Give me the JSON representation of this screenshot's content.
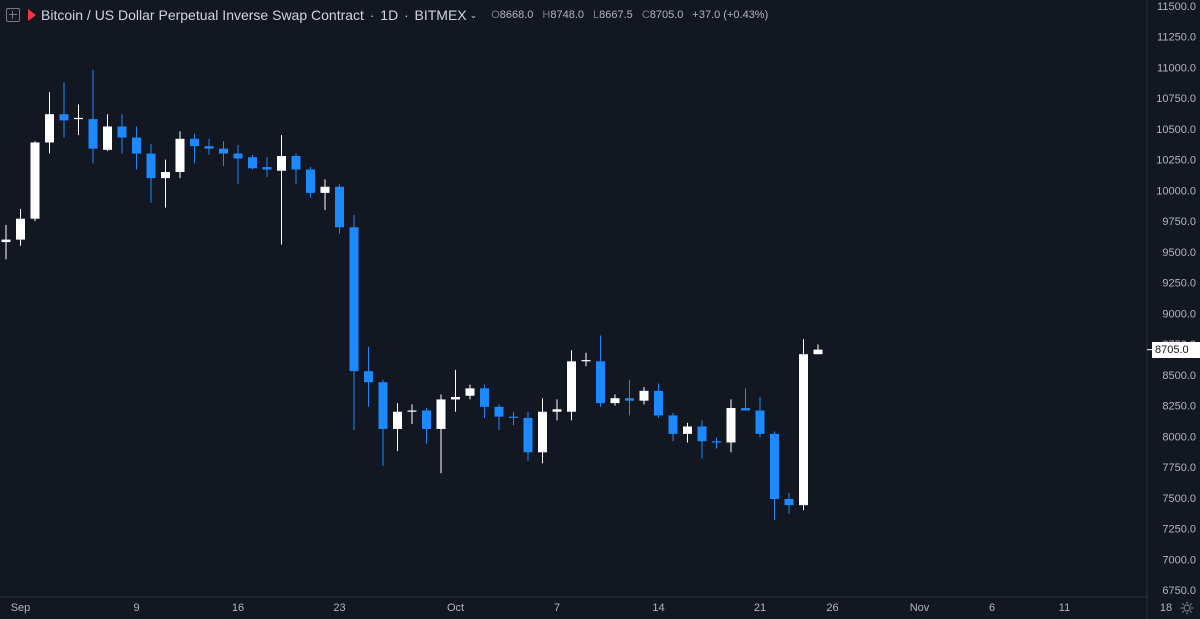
{
  "header": {
    "symbol": "Bitcoin / US Dollar Perpetual Inverse Swap Contract",
    "interval": "1D",
    "exchange": "BITMEX",
    "open_label": "O",
    "open": "8668.0",
    "high_label": "H",
    "high": "8748.0",
    "low_label": "L",
    "low": "8667.5",
    "close_label": "C",
    "close": "8705.0",
    "change": "+37.0 (+0.43%)"
  },
  "last_price_label": "8705.0",
  "colors": {
    "background": "#131722",
    "up": "#ffffff",
    "down": "#1e88ff",
    "axis_text": "#b2b5be",
    "flag": "#f23645"
  },
  "chart_data": {
    "type": "candlestick",
    "x_tick_labels": [
      "Sep",
      "9",
      "16",
      "23",
      "Oct",
      "7",
      "14",
      "21",
      "26",
      "Nov",
      "6",
      "11",
      "18"
    ],
    "y_tick_labels": [
      "6750.0",
      "7000.0",
      "7250.0",
      "7500.0",
      "7750.0",
      "8000.0",
      "8250.0",
      "8500.0",
      "8750.0",
      "9000.0",
      "9250.0",
      "9500.0",
      "9750.0",
      "10000.0",
      "10250.0",
      "10500.0",
      "10750.0",
      "11000.0",
      "11250.0",
      "11500.0"
    ],
    "ylim": [
      6700,
      11580
    ],
    "last_price": 8705.0,
    "candles": [
      {
        "date": "Aug 31",
        "o": 9580,
        "h": 9720,
        "l": 9440,
        "c": 9600
      },
      {
        "date": "Sep 1",
        "o": 9600,
        "h": 9850,
        "l": 9550,
        "c": 9770
      },
      {
        "date": "Sep 2",
        "o": 9770,
        "h": 10400,
        "l": 9750,
        "c": 10390
      },
      {
        "date": "Sep 3",
        "o": 10390,
        "h": 10800,
        "l": 10300,
        "c": 10620
      },
      {
        "date": "Sep 4",
        "o": 10620,
        "h": 10880,
        "l": 10430,
        "c": 10570
      },
      {
        "date": "Sep 5",
        "o": 10580,
        "h": 10700,
        "l": 10450,
        "c": 10590
      },
      {
        "date": "Sep 6",
        "o": 10580,
        "h": 10980,
        "l": 10220,
        "c": 10340
      },
      {
        "date": "Sep 7",
        "o": 10330,
        "h": 10620,
        "l": 10320,
        "c": 10520
      },
      {
        "date": "Sep 8",
        "o": 10520,
        "h": 10620,
        "l": 10300,
        "c": 10430
      },
      {
        "date": "Sep 9",
        "o": 10430,
        "h": 10520,
        "l": 10170,
        "c": 10300
      },
      {
        "date": "Sep 10",
        "o": 10300,
        "h": 10380,
        "l": 9900,
        "c": 10100
      },
      {
        "date": "Sep 11",
        "o": 10100,
        "h": 10250,
        "l": 9860,
        "c": 10150
      },
      {
        "date": "Sep 12",
        "o": 10150,
        "h": 10480,
        "l": 10100,
        "c": 10420
      },
      {
        "date": "Sep 13",
        "o": 10420,
        "h": 10460,
        "l": 10220,
        "c": 10360
      },
      {
        "date": "Sep 14",
        "o": 10360,
        "h": 10420,
        "l": 10290,
        "c": 10340
      },
      {
        "date": "Sep 15",
        "o": 10340,
        "h": 10400,
        "l": 10200,
        "c": 10300
      },
      {
        "date": "Sep 16",
        "o": 10300,
        "h": 10370,
        "l": 10050,
        "c": 10260
      },
      {
        "date": "Sep 17",
        "o": 10270,
        "h": 10290,
        "l": 10170,
        "c": 10180
      },
      {
        "date": "Sep 18",
        "o": 10190,
        "h": 10270,
        "l": 10110,
        "c": 10170
      },
      {
        "date": "Sep 19",
        "o": 10160,
        "h": 10450,
        "l": 9560,
        "c": 10280
      },
      {
        "date": "Sep 20",
        "o": 10280,
        "h": 10300,
        "l": 10050,
        "c": 10170
      },
      {
        "date": "Sep 21",
        "o": 10170,
        "h": 10190,
        "l": 9940,
        "c": 9980
      },
      {
        "date": "Sep 22",
        "o": 9980,
        "h": 10090,
        "l": 9840,
        "c": 10030
      },
      {
        "date": "Sep 23",
        "o": 10030,
        "h": 10050,
        "l": 9650,
        "c": 9700
      },
      {
        "date": "Sep 24",
        "o": 9700,
        "h": 9800,
        "l": 8050,
        "c": 8530
      },
      {
        "date": "Sep 25",
        "o": 8530,
        "h": 8730,
        "l": 8240,
        "c": 8440
      },
      {
        "date": "Sep 26",
        "o": 8440,
        "h": 8460,
        "l": 7760,
        "c": 8060
      },
      {
        "date": "Sep 27",
        "o": 8060,
        "h": 8270,
        "l": 7880,
        "c": 8200
      },
      {
        "date": "Sep 28",
        "o": 8200,
        "h": 8260,
        "l": 8100,
        "c": 8210
      },
      {
        "date": "Sep 29",
        "o": 8210,
        "h": 8230,
        "l": 7940,
        "c": 8060
      },
      {
        "date": "Sep 30",
        "o": 8060,
        "h": 8340,
        "l": 7700,
        "c": 8300
      },
      {
        "date": "Oct 1",
        "o": 8300,
        "h": 8540,
        "l": 8200,
        "c": 8320
      },
      {
        "date": "Oct 2",
        "o": 8330,
        "h": 8420,
        "l": 8300,
        "c": 8390
      },
      {
        "date": "Oct 3",
        "o": 8390,
        "h": 8420,
        "l": 8150,
        "c": 8240
      },
      {
        "date": "Oct 4",
        "o": 8240,
        "h": 8260,
        "l": 8050,
        "c": 8160
      },
      {
        "date": "Oct 5",
        "o": 8160,
        "h": 8200,
        "l": 8090,
        "c": 8150
      },
      {
        "date": "Oct 6",
        "o": 8150,
        "h": 8200,
        "l": 7800,
        "c": 7870
      },
      {
        "date": "Oct 7",
        "o": 7870,
        "h": 8310,
        "l": 7780,
        "c": 8200
      },
      {
        "date": "Oct 8",
        "o": 8200,
        "h": 8300,
        "l": 8130,
        "c": 8220
      },
      {
        "date": "Oct 9",
        "o": 8200,
        "h": 8700,
        "l": 8130,
        "c": 8610
      },
      {
        "date": "Oct 10",
        "o": 8610,
        "h": 8680,
        "l": 8570,
        "c": 8620
      },
      {
        "date": "Oct 11",
        "o": 8610,
        "h": 8820,
        "l": 8240,
        "c": 8270
      },
      {
        "date": "Oct 12",
        "o": 8270,
        "h": 8340,
        "l": 8250,
        "c": 8310
      },
      {
        "date": "Oct 13",
        "o": 8310,
        "h": 8460,
        "l": 8170,
        "c": 8290
      },
      {
        "date": "Oct 14",
        "o": 8290,
        "h": 8400,
        "l": 8260,
        "c": 8370
      },
      {
        "date": "Oct 15",
        "o": 8370,
        "h": 8430,
        "l": 8150,
        "c": 8170
      },
      {
        "date": "Oct 16",
        "o": 8170,
        "h": 8190,
        "l": 7960,
        "c": 8020
      },
      {
        "date": "Oct 17",
        "o": 8020,
        "h": 8110,
        "l": 7950,
        "c": 8080
      },
      {
        "date": "Oct 18",
        "o": 8080,
        "h": 8130,
        "l": 7820,
        "c": 7960
      },
      {
        "date": "Oct 19",
        "o": 7960,
        "h": 7990,
        "l": 7900,
        "c": 7950
      },
      {
        "date": "Oct 20",
        "o": 7950,
        "h": 8300,
        "l": 7870,
        "c": 8230
      },
      {
        "date": "Oct 21",
        "o": 8230,
        "h": 8390,
        "l": 8210,
        "c": 8210
      },
      {
        "date": "Oct 22",
        "o": 8210,
        "h": 8320,
        "l": 7990,
        "c": 8020
      },
      {
        "date": "Oct 23",
        "o": 8020,
        "h": 8040,
        "l": 7320,
        "c": 7490
      },
      {
        "date": "Oct 24",
        "o": 7490,
        "h": 7540,
        "l": 7370,
        "c": 7440
      },
      {
        "date": "Oct 25",
        "o": 7440,
        "h": 8790,
        "l": 7400,
        "c": 8668
      },
      {
        "date": "Oct 26",
        "o": 8668,
        "h": 8748,
        "l": 8667.5,
        "c": 8705
      }
    ]
  }
}
